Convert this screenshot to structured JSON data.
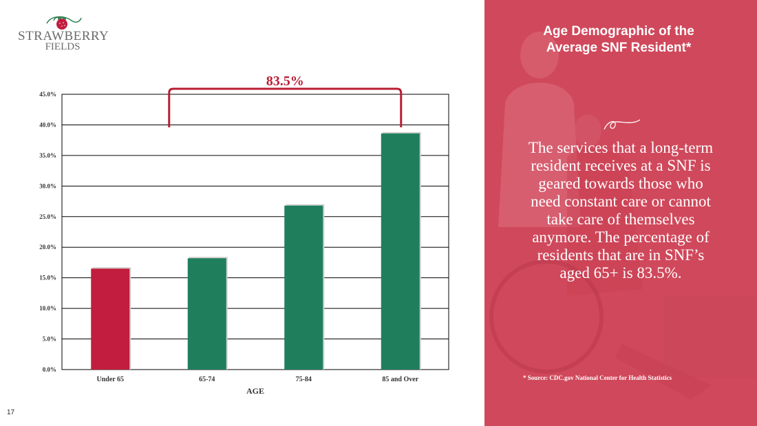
{
  "logo": {
    "line1": "STRAWBERRY",
    "line2": "FIELDS"
  },
  "page_number": "17",
  "panel": {
    "title": "Age Demographic of the Average SNF Resident*",
    "body": "The services that a long-term resident receives at a SNF is geared towards those who need constant care or cannot take care of themselves anymore. The percentage of residents that are in SNF’s aged 65+ is 83.5%.",
    "source": "* Source: CDC.gov National Center for Health Statistics"
  },
  "colors": {
    "accent_red": "#c21d3e",
    "bar_green": "#1f7f5d",
    "panel_bg": "#d24a5c",
    "bracket": "#b81e33"
  },
  "chart_data": {
    "type": "bar",
    "categories": [
      "Under 65",
      "65-74",
      "75-84",
      "85 and Over"
    ],
    "values": [
      16.5,
      18.2,
      26.8,
      38.6
    ],
    "bar_colors": [
      "#c21d3e",
      "#1f7f5d",
      "#1f7f5d",
      "#1f7f5d"
    ],
    "xlabel": "AGE",
    "ylabel": "",
    "ylim": [
      0,
      45
    ],
    "y_ticks": [
      "0.0%",
      "5.0%",
      "10.0%",
      "15.0%",
      "20.0%",
      "25.0%",
      "30.0%",
      "35.0%",
      "40.0%",
      "45.0%"
    ],
    "grid": true,
    "annotation": {
      "text": "83.5%",
      "spans": [
        "65-74",
        "85 and Over"
      ]
    }
  }
}
